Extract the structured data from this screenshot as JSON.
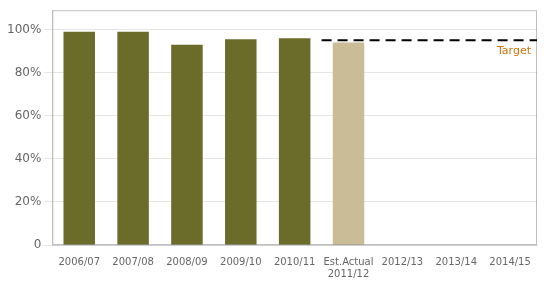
{
  "chart_data": {
    "type": "bar",
    "categories": [
      "2006/07",
      "2007/08",
      "2008/09",
      "2009/10",
      "2010/11",
      "Est.Actual\n2011/12",
      "2012/13",
      "2013/14",
      "2014/15"
    ],
    "values": [
      0.99,
      0.99,
      0.93,
      0.955,
      0.96,
      0.94,
      0,
      0,
      0
    ],
    "colors": [
      "#6b6b2a",
      "#6b6b2a",
      "#6b6b2a",
      "#6b6b2a",
      "#6b6b2a",
      "#c9bc96",
      "#ffffff",
      "#ffffff",
      "#ffffff"
    ],
    "ylim": [
      0,
      1.09
    ],
    "yticks": [
      0,
      {
        "value": 0.2,
        "label": "20%"
      },
      {
        "value": 0.4,
        "label": "40%"
      },
      {
        "value": 0.6,
        "label": "60%"
      },
      {
        "value": 0.8,
        "label": "80%"
      },
      {
        "value": 1.0,
        "label": "100%"
      }
    ],
    "grid": true,
    "annotations": [
      {
        "type": "hline",
        "y": 0.95,
        "x_start": 4.5,
        "x_end": 8.55,
        "text": "Target",
        "color": "#d4700a"
      }
    ]
  }
}
